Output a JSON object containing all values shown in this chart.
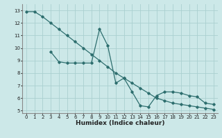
{
  "xlabel": "Humidex (Indice chaleur)",
  "bg_color": "#cce8e8",
  "grid_color": "#aad0d0",
  "line_color": "#2d6e6e",
  "line1_x": [
    0,
    1,
    2,
    3,
    4,
    5,
    6,
    7,
    8,
    9,
    10,
    11,
    12,
    13,
    14,
    15,
    16,
    17,
    18,
    19,
    20,
    21,
    22,
    23
  ],
  "line1_y": [
    12.9,
    12.9,
    12.5,
    12.0,
    11.5,
    11.0,
    10.5,
    10.0,
    9.5,
    9.0,
    8.5,
    8.0,
    7.6,
    7.2,
    6.8,
    6.4,
    6.0,
    5.8,
    5.6,
    5.5,
    5.4,
    5.3,
    5.2,
    5.1
  ],
  "line2_x": [
    3,
    4,
    5,
    6,
    7,
    8,
    9,
    10,
    11,
    12,
    13,
    14,
    15,
    16,
    17,
    18,
    19,
    20,
    21,
    22,
    23
  ],
  "line2_y": [
    9.7,
    8.9,
    8.8,
    8.8,
    8.8,
    8.8,
    11.5,
    10.2,
    7.2,
    7.6,
    6.5,
    5.4,
    5.3,
    6.2,
    6.5,
    6.5,
    6.4,
    6.2,
    6.1,
    5.6,
    5.5
  ],
  "xlim": [
    -0.5,
    23.5
  ],
  "ylim": [
    4.8,
    13.5
  ],
  "yticks": [
    5,
    6,
    7,
    8,
    9,
    10,
    11,
    12,
    13
  ],
  "xticks": [
    0,
    1,
    2,
    3,
    4,
    5,
    6,
    7,
    8,
    9,
    10,
    11,
    12,
    13,
    14,
    15,
    16,
    17,
    18,
    19,
    20,
    21,
    22,
    23
  ],
  "xlabel_fontsize": 6.5,
  "tick_fontsize": 5.0
}
